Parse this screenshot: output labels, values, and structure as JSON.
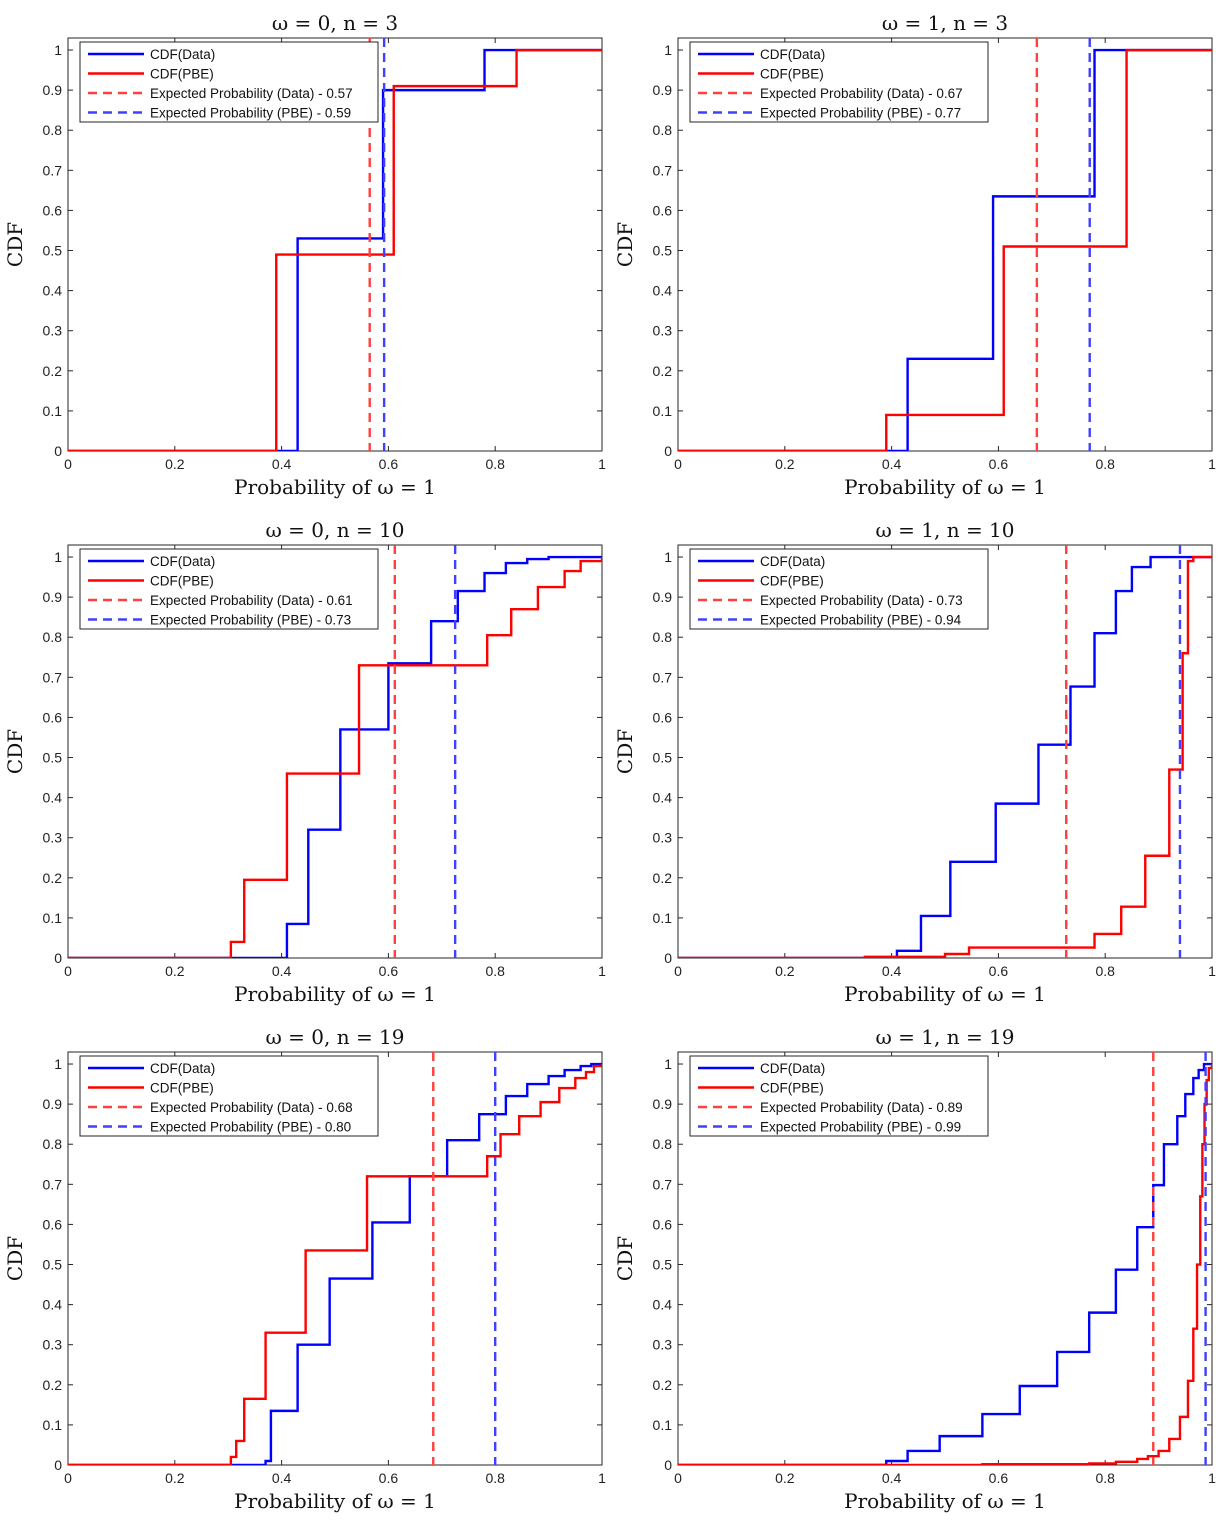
{
  "chart_data": [
    {
      "type": "line",
      "title": "ω = 0, n = 3",
      "xlabel": "Probability of ω = 1",
      "ylabel": "CDF",
      "xlim": [
        0,
        1
      ],
      "ylim": [
        0,
        1.03
      ],
      "xticks": [
        "0",
        "0.2",
        "0.4",
        "0.6",
        "0.8",
        "1"
      ],
      "yticks": [
        "0",
        "0.1",
        "0.2",
        "0.3",
        "0.4",
        "0.5",
        "0.6",
        "0.7",
        "0.8",
        "0.9",
        "1"
      ],
      "grid": false,
      "legend_position": "top-left",
      "series": [
        {
          "name": "CDF(Data)",
          "color": "#0000ff",
          "style": "stairs",
          "x": [
            0,
            0.43,
            0.59,
            0.78,
            1
          ],
          "y": [
            0,
            0.53,
            0.9,
            1.0,
            1.0
          ]
        },
        {
          "name": "CDF(PBE)",
          "color": "#ff0000",
          "style": "stairs",
          "x": [
            0,
            0.39,
            0.61,
            0.84,
            1
          ],
          "y": [
            0,
            0.49,
            0.91,
            1.0,
            1.0
          ]
        }
      ],
      "vlines": [
        {
          "name": "Expected Probability (Data) - 0.57",
          "color": "#ff4040",
          "x": 0.565
        },
        {
          "name": "Expected Probability (PBE) - 0.59",
          "color": "#4040ff",
          "x": 0.592
        }
      ]
    },
    {
      "type": "line",
      "title": "ω = 1, n = 3",
      "xlabel": "Probability of ω = 1",
      "ylabel": "CDF",
      "xlim": [
        0,
        1
      ],
      "ylim": [
        0,
        1.03
      ],
      "xticks": [
        "0",
        "0.2",
        "0.4",
        "0.6",
        "0.8",
        "1"
      ],
      "yticks": [
        "0",
        "0.1",
        "0.2",
        "0.3",
        "0.4",
        "0.5",
        "0.6",
        "0.7",
        "0.8",
        "0.9",
        "1"
      ],
      "grid": false,
      "legend_position": "top-left",
      "series": [
        {
          "name": "CDF(Data)",
          "color": "#0000ff",
          "style": "stairs",
          "x": [
            0,
            0.43,
            0.59,
            0.78,
            1
          ],
          "y": [
            0,
            0.23,
            0.635,
            1.0,
            1.0
          ]
        },
        {
          "name": "CDF(PBE)",
          "color": "#ff0000",
          "style": "stairs",
          "x": [
            0,
            0.39,
            0.61,
            0.84,
            1
          ],
          "y": [
            0,
            0.09,
            0.51,
            1.0,
            1.0
          ]
        }
      ],
      "vlines": [
        {
          "name": "Expected Probability (Data) - 0.67",
          "color": "#ff4040",
          "x": 0.672
        },
        {
          "name": "Expected Probability (PBE) - 0.77",
          "color": "#4040ff",
          "x": 0.771
        }
      ]
    },
    {
      "type": "line",
      "title": "ω = 0, n = 10",
      "xlabel": "Probability of ω = 1",
      "ylabel": "CDF",
      "xlim": [
        0,
        1
      ],
      "ylim": [
        0,
        1.03
      ],
      "xticks": [
        "0",
        "0.2",
        "0.4",
        "0.6",
        "0.8",
        "1"
      ],
      "yticks": [
        "0",
        "0.1",
        "0.2",
        "0.3",
        "0.4",
        "0.5",
        "0.6",
        "0.7",
        "0.8",
        "0.9",
        "1"
      ],
      "grid": false,
      "legend_position": "top-left",
      "series": [
        {
          "name": "CDF(Data)",
          "color": "#0000ff",
          "style": "stairs",
          "x": [
            0,
            0.41,
            0.45,
            0.51,
            0.6,
            0.68,
            0.73,
            0.78,
            0.82,
            0.86,
            0.9,
            0.95,
            1
          ],
          "y": [
            0,
            0.085,
            0.32,
            0.57,
            0.735,
            0.84,
            0.915,
            0.96,
            0.985,
            0.995,
            1.0,
            1.0,
            1.0
          ]
        },
        {
          "name": "CDF(PBE)",
          "color": "#ff0000",
          "style": "stairs",
          "x": [
            0,
            0.305,
            0.33,
            0.41,
            0.545,
            0.785,
            0.83,
            0.88,
            0.93,
            0.96,
            1
          ],
          "y": [
            0,
            0.04,
            0.195,
            0.46,
            0.73,
            0.805,
            0.87,
            0.925,
            0.965,
            0.99,
            1.0
          ]
        }
      ],
      "vlines": [
        {
          "name": "Expected Probability (Data) - 0.61",
          "color": "#ff4040",
          "x": 0.612
        },
        {
          "name": "Expected Probability (PBE) - 0.73",
          "color": "#4040ff",
          "x": 0.725
        }
      ]
    },
    {
      "type": "line",
      "title": "ω = 1, n = 10",
      "xlabel": "Probability of ω = 1",
      "ylabel": "CDF",
      "xlim": [
        0,
        1
      ],
      "ylim": [
        0,
        1.03
      ],
      "xticks": [
        "0",
        "0.2",
        "0.4",
        "0.6",
        "0.8",
        "1"
      ],
      "yticks": [
        "0",
        "0.1",
        "0.2",
        "0.3",
        "0.4",
        "0.5",
        "0.6",
        "0.7",
        "0.8",
        "0.9",
        "1"
      ],
      "grid": false,
      "legend_position": "top-left",
      "series": [
        {
          "name": "CDF(Data)",
          "color": "#0000ff",
          "style": "stairs",
          "x": [
            0,
            0.41,
            0.455,
            0.51,
            0.595,
            0.675,
            0.735,
            0.78,
            0.82,
            0.85,
            0.885,
            1
          ],
          "y": [
            0,
            0.018,
            0.105,
            0.24,
            0.385,
            0.532,
            0.677,
            0.81,
            0.915,
            0.975,
            1.0,
            1.0
          ]
        },
        {
          "name": "CDF(PBE)",
          "color": "#ff0000",
          "style": "stairs",
          "x": [
            0,
            0.35,
            0.5,
            0.545,
            0.78,
            0.83,
            0.875,
            0.92,
            0.945,
            0.955,
            0.965,
            1
          ],
          "y": [
            0,
            0.003,
            0.01,
            0.026,
            0.06,
            0.128,
            0.255,
            0.47,
            0.76,
            0.99,
            1.0,
            1.0
          ]
        }
      ],
      "vlines": [
        {
          "name": "Expected Probability (Data) - 0.73",
          "color": "#ff4040",
          "x": 0.727
        },
        {
          "name": "Expected Probability (PBE) - 0.94",
          "color": "#4040ff",
          "x": 0.94
        }
      ]
    },
    {
      "type": "line",
      "title": "ω = 0, n = 19",
      "xlabel": "Probability of ω = 1",
      "ylabel": "CDF",
      "xlim": [
        0,
        1
      ],
      "ylim": [
        0,
        1.03
      ],
      "xticks": [
        "0",
        "0.2",
        "0.4",
        "0.6",
        "0.8",
        "1"
      ],
      "yticks": [
        "0",
        "0.1",
        "0.2",
        "0.3",
        "0.4",
        "0.5",
        "0.6",
        "0.7",
        "0.8",
        "0.9",
        "1"
      ],
      "grid": false,
      "legend_position": "top-left",
      "series": [
        {
          "name": "CDF(Data)",
          "color": "#0000ff",
          "style": "stairs",
          "x": [
            0,
            0.37,
            0.38,
            0.43,
            0.49,
            0.57,
            0.64,
            0.71,
            0.77,
            0.82,
            0.86,
            0.9,
            0.93,
            0.96,
            0.98,
            1
          ],
          "y": [
            0,
            0.01,
            0.135,
            0.3,
            0.465,
            0.605,
            0.72,
            0.81,
            0.875,
            0.92,
            0.95,
            0.97,
            0.985,
            0.995,
            1.0,
            1.0
          ]
        },
        {
          "name": "CDF(PBE)",
          "color": "#ff0000",
          "style": "stairs",
          "x": [
            0,
            0.305,
            0.315,
            0.33,
            0.37,
            0.445,
            0.56,
            0.785,
            0.81,
            0.845,
            0.885,
            0.92,
            0.95,
            0.97,
            0.985,
            1
          ],
          "y": [
            0,
            0.02,
            0.06,
            0.165,
            0.33,
            0.535,
            0.72,
            0.77,
            0.825,
            0.87,
            0.905,
            0.94,
            0.965,
            0.98,
            0.995,
            1.0
          ]
        }
      ],
      "vlines": [
        {
          "name": "Expected Probability (Data) - 0.68",
          "color": "#ff4040",
          "x": 0.684
        },
        {
          "name": "Expected Probability (PBE) - 0.80",
          "color": "#4040ff",
          "x": 0.8
        }
      ]
    },
    {
      "type": "line",
      "title": "ω = 1, n = 19",
      "xlabel": "Probability of ω = 1",
      "ylabel": "CDF",
      "xlim": [
        0,
        1
      ],
      "ylim": [
        0,
        1.03
      ],
      "xticks": [
        "0",
        "0.2",
        "0.4",
        "0.6",
        "0.8",
        "1"
      ],
      "yticks": [
        "0",
        "0.1",
        "0.2",
        "0.3",
        "0.4",
        "0.5",
        "0.6",
        "0.7",
        "0.8",
        "0.9",
        "1"
      ],
      "grid": false,
      "legend_position": "top-left",
      "series": [
        {
          "name": "CDF(Data)",
          "color": "#0000ff",
          "style": "stairs",
          "x": [
            0,
            0.39,
            0.43,
            0.49,
            0.57,
            0.64,
            0.71,
            0.77,
            0.82,
            0.86,
            0.89,
            0.91,
            0.935,
            0.95,
            0.965,
            0.975,
            0.985,
            1
          ],
          "y": [
            0,
            0.01,
            0.035,
            0.072,
            0.127,
            0.197,
            0.282,
            0.38,
            0.487,
            0.593,
            0.698,
            0.8,
            0.87,
            0.925,
            0.965,
            0.985,
            1.0,
            1.0
          ]
        },
        {
          "name": "CDF(PBE)",
          "color": "#ff0000",
          "style": "stairs",
          "x": [
            0,
            0.57,
            0.77,
            0.82,
            0.86,
            0.88,
            0.9,
            0.92,
            0.94,
            0.955,
            0.965,
            0.972,
            0.978,
            0.982,
            0.986,
            0.99,
            0.994,
            1
          ],
          "y": [
            0,
            0.002,
            0.004,
            0.008,
            0.015,
            0.022,
            0.035,
            0.065,
            0.12,
            0.21,
            0.34,
            0.5,
            0.67,
            0.8,
            0.9,
            0.96,
            0.99,
            1.0
          ]
        }
      ],
      "vlines": [
        {
          "name": "Expected Probability (Data) - 0.89",
          "color": "#ff4040",
          "x": 0.89
        },
        {
          "name": "Expected Probability (PBE) - 0.99",
          "color": "#4040ff",
          "x": 0.988
        }
      ]
    }
  ]
}
